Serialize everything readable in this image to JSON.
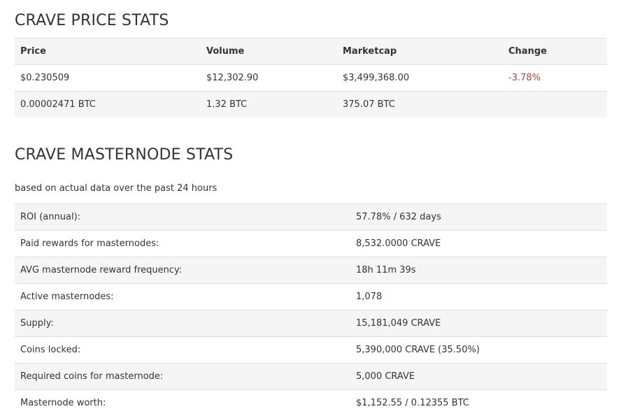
{
  "price_section": {
    "title": "CRAVE PRICE STATS",
    "headers": [
      "Price",
      "Volume",
      "Marketcap",
      "Change"
    ],
    "usd_row": {
      "price": "$0.230509",
      "volume": "$12,302.90",
      "marketcap": "$3,499,368.00",
      "change": "-3.78%"
    },
    "btc_row": {
      "price": "0.00002471 BTC",
      "volume": "1.32 BTC",
      "marketcap": "375.07 BTC",
      "change": ""
    },
    "change_color": "#a94442"
  },
  "masternode_section": {
    "title": "CRAVE MASTERNODE STATS",
    "subtitle": "based on actual data over the past 24 hours",
    "rows": [
      {
        "label": "ROI (annual):",
        "value": "57.78% / 632 days"
      },
      {
        "label": "Paid rewards for masternodes:",
        "value": "8,532.0000 CRAVE"
      },
      {
        "label": "AVG masternode reward frequency:",
        "value": "18h 11m 39s"
      },
      {
        "label": "Active masternodes:",
        "value": "1,078"
      },
      {
        "label": "Supply:",
        "value": "15,181,049 CRAVE"
      },
      {
        "label": "Coins locked:",
        "value": "5,390,000 CRAVE (35.50%)"
      },
      {
        "label": "Required coins for masternode:",
        "value": "5,000 CRAVE"
      },
      {
        "label": "Masternode worth:",
        "value": "$1,152.55 / 0.12355 BTC"
      }
    ]
  }
}
